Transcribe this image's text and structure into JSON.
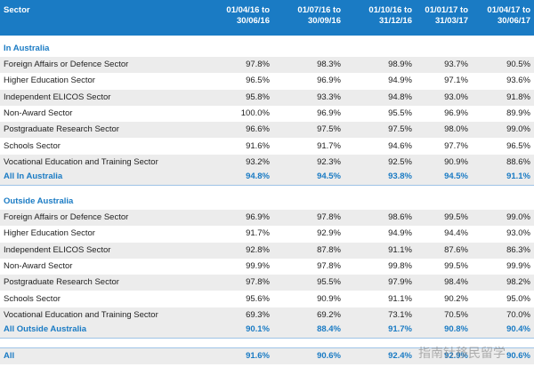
{
  "header": {
    "columns": [
      "Sector",
      "01/04/16 to 30/06/16",
      "01/07/16 to 30/09/16",
      "01/10/16 to 31/12/16",
      "01/01/17 to 31/03/17",
      "01/04/17 to 30/06/17"
    ]
  },
  "sections": [
    {
      "label": "In Australia",
      "rows": [
        {
          "name": "Foreign Affairs or Defence Sector",
          "values": [
            "97.8%",
            "98.3%",
            "98.9%",
            "93.7%",
            "90.5%"
          ]
        },
        {
          "name": "Higher Education Sector",
          "values": [
            "96.5%",
            "96.9%",
            "94.9%",
            "97.1%",
            "93.6%"
          ]
        },
        {
          "name": "Independent ELICOS Sector",
          "values": [
            "95.8%",
            "93.3%",
            "94.8%",
            "93.0%",
            "91.8%"
          ]
        },
        {
          "name": "Non-Award Sector",
          "values": [
            "100.0%",
            "96.9%",
            "95.5%",
            "96.9%",
            "89.9%"
          ]
        },
        {
          "name": "Postgraduate Research Sector",
          "values": [
            "96.6%",
            "97.5%",
            "97.5%",
            "98.0%",
            "99.0%"
          ]
        },
        {
          "name": "Schools Sector",
          "values": [
            "91.6%",
            "91.7%",
            "94.6%",
            "97.7%",
            "96.5%"
          ]
        },
        {
          "name": "Vocational Education and Training Sector",
          "values": [
            "93.2%",
            "92.3%",
            "92.5%",
            "90.9%",
            "88.6%"
          ]
        }
      ],
      "total": {
        "name": "All In Australia",
        "values": [
          "94.8%",
          "94.5%",
          "93.8%",
          "94.5%",
          "91.1%"
        ]
      }
    },
    {
      "label": "Outside Australia",
      "rows": [
        {
          "name": "Foreign Affairs or Defence Sector",
          "values": [
            "96.9%",
            "97.8%",
            "98.6%",
            "99.5%",
            "99.0%"
          ]
        },
        {
          "name": "Higher Education Sector",
          "values": [
            "91.7%",
            "92.9%",
            "94.9%",
            "94.4%",
            "93.0%"
          ]
        },
        {
          "name": "Independent ELICOS Sector",
          "values": [
            "92.8%",
            "87.8%",
            "91.1%",
            "87.6%",
            "86.3%"
          ]
        },
        {
          "name": "Non-Award Sector",
          "values": [
            "99.9%",
            "97.8%",
            "99.8%",
            "99.5%",
            "99.9%"
          ]
        },
        {
          "name": "Postgraduate Research Sector",
          "values": [
            "97.8%",
            "95.5%",
            "97.9%",
            "98.4%",
            "98.2%"
          ]
        },
        {
          "name": "Schools Sector",
          "values": [
            "95.6%",
            "90.9%",
            "91.1%",
            "90.2%",
            "95.0%"
          ]
        },
        {
          "name": "Vocational Education and Training Sector",
          "values": [
            "69.3%",
            "69.2%",
            "73.1%",
            "70.5%",
            "70.0%"
          ]
        }
      ],
      "total": {
        "name": "All Outside Australia",
        "values": [
          "90.1%",
          "88.4%",
          "91.7%",
          "90.8%",
          "90.4%"
        ]
      }
    }
  ],
  "grand_total": {
    "name": "All",
    "values": [
      "91.6%",
      "90.6%",
      "92.4%",
      "92.9%",
      "90.6%"
    ]
  },
  "watermark": "指南针移民留学"
}
